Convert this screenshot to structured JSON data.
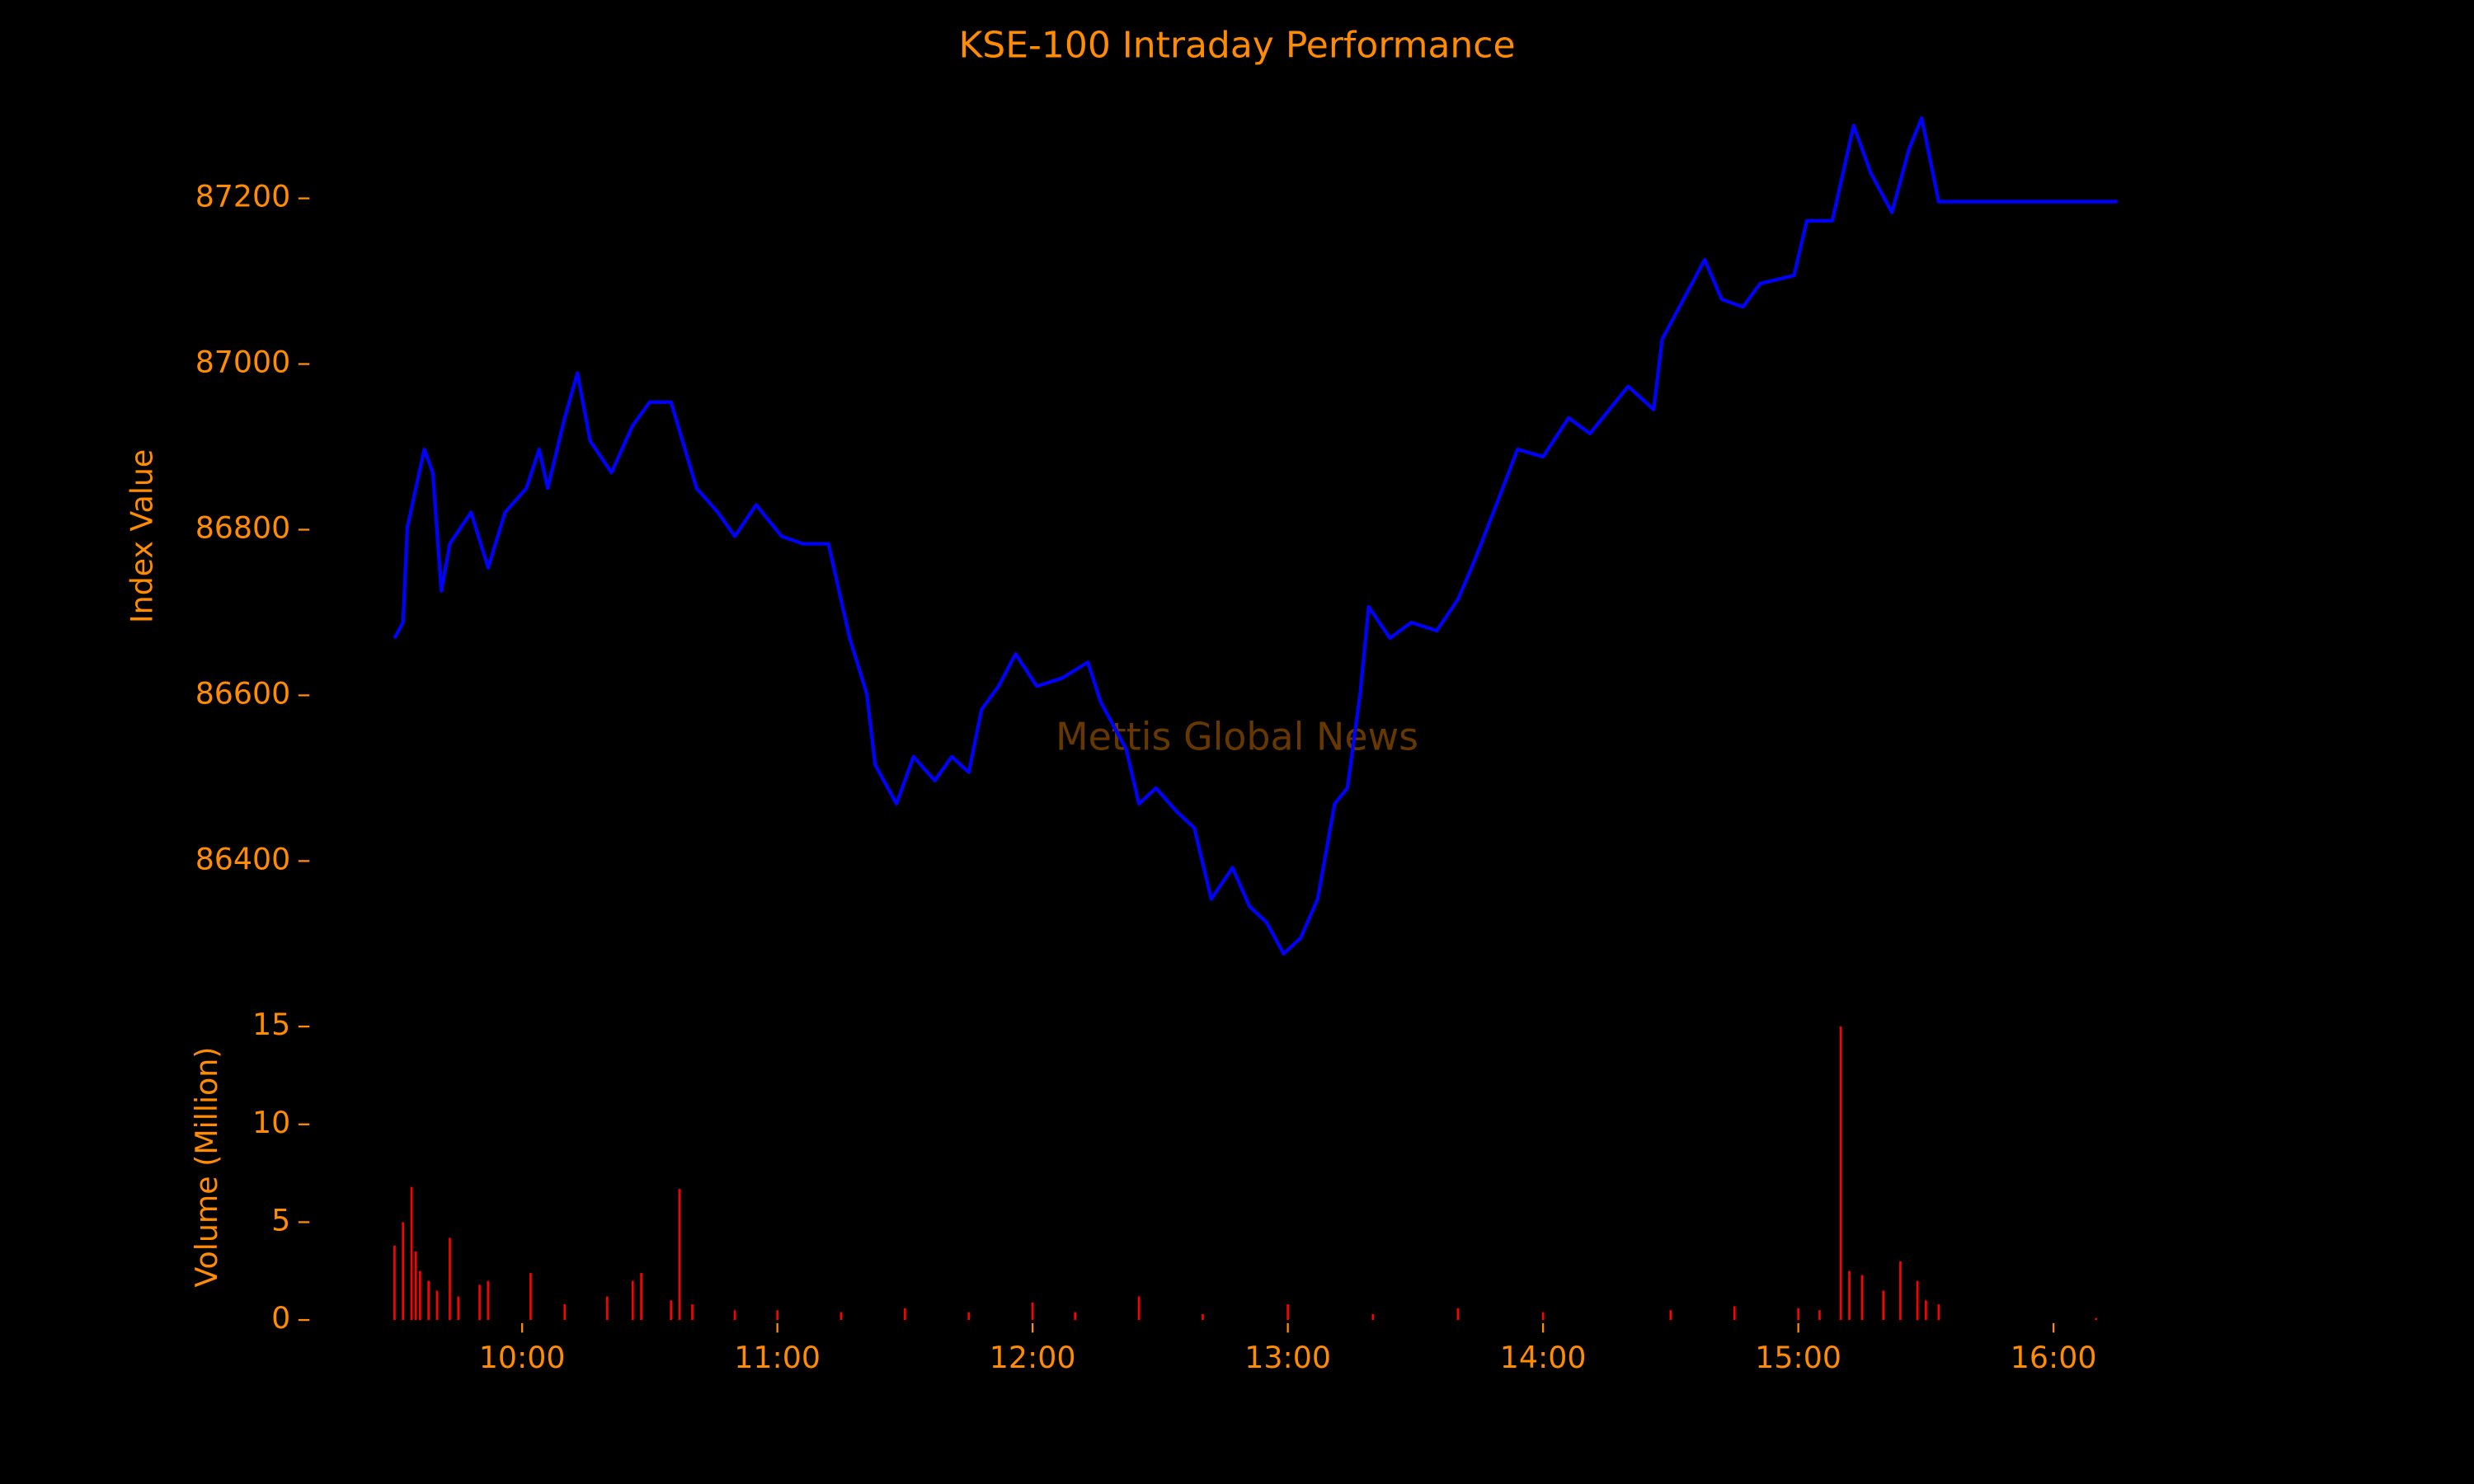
{
  "chart_data": [
    {
      "type": "line",
      "title": "KSE-100 Intraday Performance",
      "y_label": "Index Value",
      "annotation": "Mettis Global News",
      "x": [
        "09:30",
        "09:32",
        "09:33",
        "09:35",
        "09:37",
        "09:39",
        "09:41",
        "09:43",
        "09:48",
        "09:52",
        "09:56",
        "10:01",
        "10:04",
        "10:06",
        "10:10",
        "10:13",
        "10:16",
        "10:21",
        "10:26",
        "10:30",
        "10:35",
        "10:41",
        "10:46",
        "10:50",
        "10:55",
        "11:01",
        "11:06",
        "11:12",
        "11:17",
        "11:21",
        "11:23",
        "11:28",
        "11:32",
        "11:37",
        "11:41",
        "11:45",
        "11:48",
        "11:52",
        "11:56",
        "12:01",
        "12:07",
        "12:13",
        "12:16",
        "12:22",
        "12:25",
        "12:29",
        "12:34",
        "12:38",
        "12:42",
        "12:47",
        "12:51",
        "12:55",
        "12:59",
        "13:03",
        "13:07",
        "13:11",
        "13:14",
        "13:17",
        "13:19",
        "13:24",
        "13:29",
        "13:35",
        "13:40",
        "13:44",
        "13:49",
        "13:54",
        "14:00",
        "14:06",
        "14:11",
        "14:17",
        "14:20",
        "14:26",
        "14:28",
        "14:33",
        "14:38",
        "14:42",
        "14:47",
        "14:51",
        "14:59",
        "15:02",
        "15:08",
        "15:13",
        "15:17",
        "15:22",
        "15:26",
        "15:29",
        "15:33",
        "16:15"
      ],
      "series": [
        {
          "color": "#0000ff",
          "values": [
            86669,
            86688,
            86802,
            86850,
            86897,
            86869,
            86726,
            86783,
            86821,
            86754,
            86821,
            86850,
            86897,
            86850,
            86935,
            86989,
            86907,
            86869,
            86926,
            86954,
            86954,
            86850,
            86821,
            86792,
            86830,
            86792,
            86783,
            86783,
            86669,
            86602,
            86516,
            86469,
            86526,
            86497,
            86526,
            86507,
            86583,
            86611,
            86650,
            86611,
            86621,
            86640,
            86592,
            86535,
            86469,
            86488,
            86459,
            86440,
            86354,
            86392,
            86345,
            86326,
            86288,
            86307,
            86354,
            86469,
            86488,
            86602,
            86707,
            86669,
            86688,
            86678,
            86716,
            86764,
            86830,
            86897,
            86888,
            86935,
            86916,
            86954,
            86973,
            86945,
            87030,
            87078,
            87126,
            87078,
            87069,
            87097,
            87107,
            87173,
            87173,
            87288,
            87231,
            87183,
            87259,
            87297,
            87196,
            87196
          ]
        }
      ],
      "xlim": [
        "09:10",
        "16:35"
      ],
      "ylim": [
        86240,
        87350
      ],
      "yticks": [
        86400,
        86600,
        86800,
        87000,
        87200
      ]
    },
    {
      "type": "bar",
      "y_label": "Volume (Million)",
      "x": [
        "09:30",
        "09:32",
        "09:34",
        "09:35",
        "09:36",
        "09:38",
        "09:40",
        "09:43",
        "09:45",
        "09:50",
        "09:52",
        "10:02",
        "10:10",
        "10:20",
        "10:26",
        "10:28",
        "10:35",
        "10:37",
        "10:40",
        "10:50",
        "11:00",
        "11:15",
        "11:30",
        "11:45",
        "12:00",
        "12:10",
        "12:25",
        "12:40",
        "13:00",
        "13:20",
        "13:40",
        "14:00",
        "14:30",
        "14:45",
        "15:00",
        "15:05",
        "15:10",
        "15:12",
        "15:15",
        "15:20",
        "15:24",
        "15:28",
        "15:30",
        "15:33",
        "16:10"
      ],
      "series": [
        {
          "color": "#ff0000",
          "values": [
            3.8,
            5.0,
            6.8,
            3.5,
            2.5,
            2.0,
            1.5,
            4.2,
            1.2,
            1.8,
            2.0,
            2.4,
            0.8,
            1.2,
            2.0,
            2.4,
            1.0,
            6.7,
            0.8,
            0.5,
            0.5,
            0.4,
            0.6,
            0.4,
            0.9,
            0.4,
            1.2,
            0.3,
            0.8,
            0.3,
            0.6,
            0.4,
            0.5,
            0.7,
            0.6,
            0.5,
            15.0,
            2.5,
            2.3,
            1.5,
            3.0,
            2.0,
            1.0,
            0.8,
            0.1
          ]
        }
      ],
      "xlim": [
        "09:10",
        "16:35"
      ],
      "ylim": [
        0,
        15.8
      ],
      "yticks": [
        0,
        5,
        10,
        15
      ],
      "xticks": [
        "10:00",
        "11:00",
        "12:00",
        "13:00",
        "14:00",
        "15:00",
        "16:00"
      ]
    }
  ]
}
